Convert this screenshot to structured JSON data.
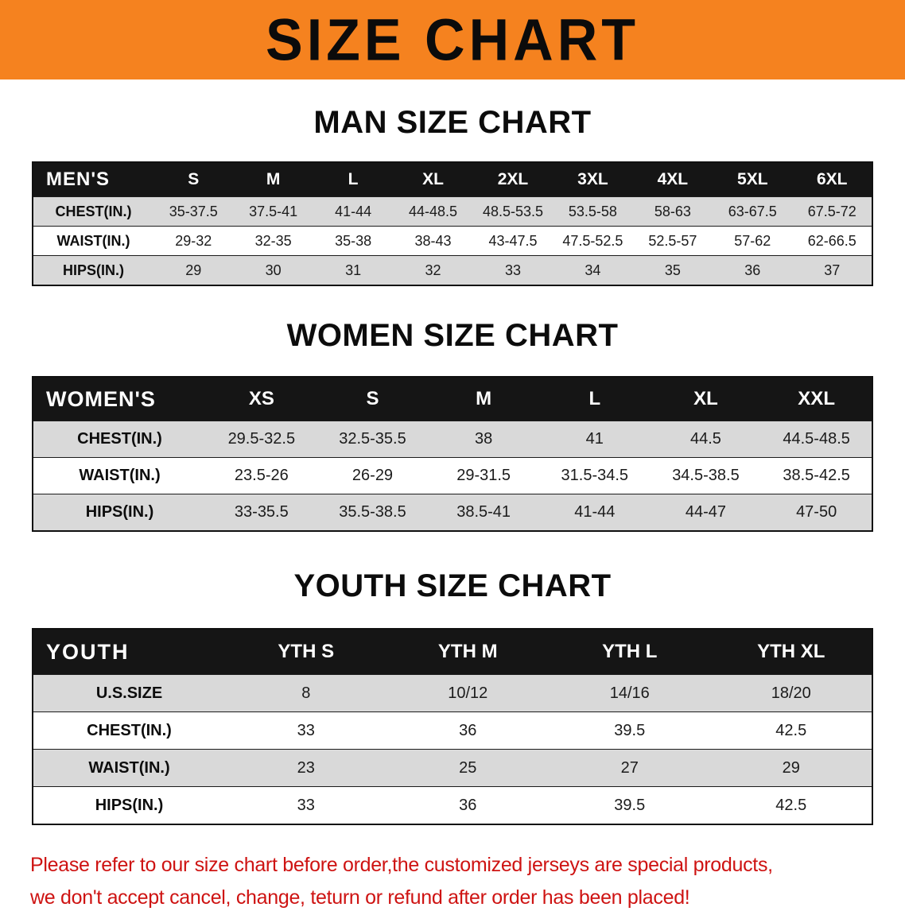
{
  "colors": {
    "banner_bg": "#f5821f",
    "header_bg": "#151515",
    "row_shade": "#d9d9d9",
    "disclaimer_red": "#ce1312"
  },
  "banner": {
    "title": "SIZE CHART"
  },
  "men": {
    "heading": "MAN SIZE CHART",
    "header": [
      "MEN'S",
      "S",
      "M",
      "L",
      "XL",
      "2XL",
      "3XL",
      "4XL",
      "5XL",
      "6XL"
    ],
    "rows": [
      {
        "label": "CHEST(IN.)",
        "values": [
          "35-37.5",
          "37.5-41",
          "41-44",
          "44-48.5",
          "48.5-53.5",
          "53.5-58",
          "58-63",
          "63-67.5",
          "67.5-72"
        ]
      },
      {
        "label": "WAIST(IN.)",
        "values": [
          "29-32",
          "32-35",
          "35-38",
          "38-43",
          "43-47.5",
          "47.5-52.5",
          "52.5-57",
          "57-62",
          "62-66.5"
        ]
      },
      {
        "label": "HIPS(IN.)",
        "values": [
          "29",
          "30",
          "31",
          "32",
          "33",
          "34",
          "35",
          "36",
          "37"
        ]
      }
    ]
  },
  "women": {
    "heading": "WOMEN SIZE CHART",
    "header": [
      "WOMEN'S",
      "XS",
      "S",
      "M",
      "L",
      "XL",
      "XXL"
    ],
    "rows": [
      {
        "label": "CHEST(IN.)",
        "values": [
          "29.5-32.5",
          "32.5-35.5",
          "38",
          "41",
          "44.5",
          "44.5-48.5"
        ]
      },
      {
        "label": "WAIST(IN.)",
        "values": [
          "23.5-26",
          "26-29",
          "29-31.5",
          "31.5-34.5",
          "34.5-38.5",
          "38.5-42.5"
        ]
      },
      {
        "label": "HIPS(IN.)",
        "values": [
          "33-35.5",
          "35.5-38.5",
          "38.5-41",
          "41-44",
          "44-47",
          "47-50"
        ]
      }
    ]
  },
  "youth": {
    "heading": "YOUTH SIZE CHART",
    "header": [
      "YOUTH",
      "YTH S",
      "YTH M",
      "YTH L",
      "YTH XL"
    ],
    "rows": [
      {
        "label": "U.S.SIZE",
        "values": [
          "8",
          "10/12",
          "14/16",
          "18/20"
        ]
      },
      {
        "label": "CHEST(IN.)",
        "values": [
          "33",
          "36",
          "39.5",
          "42.5"
        ]
      },
      {
        "label": "WAIST(IN.)",
        "values": [
          "23",
          "25",
          "27",
          "29"
        ]
      },
      {
        "label": "HIPS(IN.)",
        "values": [
          "33",
          "36",
          "39.5",
          "42.5"
        ]
      }
    ]
  },
  "disclaimer": {
    "line1": "Please refer to our size chart before order,the customized jerseys are special products,",
    "line2": "we don't accept cancel, change, teturn or refund after order has been placed!"
  }
}
